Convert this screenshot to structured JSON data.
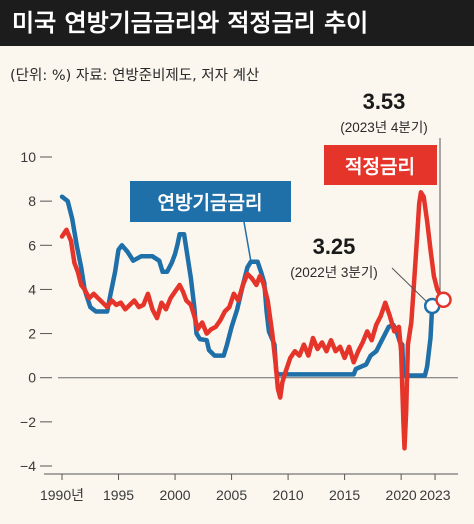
{
  "header": {
    "title": "미국 연방기금금리와 적정금리 추이",
    "subtitle": "(단위: %)  자료: 연방준비제도, 저자 계산"
  },
  "chart_data": {
    "type": "line",
    "xlim": [
      1990,
      2024.5
    ],
    "ylim": [
      -4,
      10
    ],
    "x_ticks": [
      {
        "value": 1990,
        "label": "1990년"
      },
      {
        "value": 1995,
        "label": "1995"
      },
      {
        "value": 2000,
        "label": "2000"
      },
      {
        "value": 2005,
        "label": "2005"
      },
      {
        "value": 2010,
        "label": "2010"
      },
      {
        "value": 2015,
        "label": "2015"
      },
      {
        "value": 2020,
        "label": "2020"
      },
      {
        "value": 2023,
        "label": "2023"
      }
    ],
    "y_ticks": [
      {
        "value": 10,
        "label": "10"
      },
      {
        "value": 8,
        "label": "8"
      },
      {
        "value": 6,
        "label": "6"
      },
      {
        "value": 4,
        "label": "4"
      },
      {
        "value": 2,
        "label": "2"
      },
      {
        "value": 0,
        "label": "0"
      },
      {
        "value": -2,
        "label": "−2"
      },
      {
        "value": -4,
        "label": "−4"
      }
    ],
    "zero_line": true,
    "series": [
      {
        "name": "연방기금금리",
        "color": "#1f6fa8",
        "points": [
          [
            1990.0,
            8.2
          ],
          [
            1990.5,
            8.0
          ],
          [
            1990.9,
            7.2
          ],
          [
            1991.3,
            6.0
          ],
          [
            1991.7,
            5.0
          ],
          [
            1992.0,
            4.0
          ],
          [
            1992.5,
            3.2
          ],
          [
            1993.0,
            3.0
          ],
          [
            1993.5,
            3.0
          ],
          [
            1994.0,
            3.0
          ],
          [
            1994.3,
            3.8
          ],
          [
            1994.7,
            4.8
          ],
          [
            1995.0,
            5.8
          ],
          [
            1995.3,
            6.0
          ],
          [
            1995.8,
            5.7
          ],
          [
            1996.3,
            5.3
          ],
          [
            1997.0,
            5.5
          ],
          [
            1997.5,
            5.5
          ],
          [
            1998.0,
            5.5
          ],
          [
            1998.6,
            5.3
          ],
          [
            1998.9,
            4.8
          ],
          [
            1999.3,
            4.8
          ],
          [
            1999.7,
            5.2
          ],
          [
            2000.0,
            5.6
          ],
          [
            2000.2,
            6.0
          ],
          [
            2000.4,
            6.5
          ],
          [
            2000.8,
            6.5
          ],
          [
            2001.1,
            5.5
          ],
          [
            2001.4,
            4.5
          ],
          [
            2001.7,
            3.2
          ],
          [
            2001.9,
            2.0
          ],
          [
            2002.2,
            1.75
          ],
          [
            2002.8,
            1.7
          ],
          [
            2003.0,
            1.25
          ],
          [
            2003.5,
            1.0
          ],
          [
            2004.3,
            1.0
          ],
          [
            2004.6,
            1.5
          ],
          [
            2005.0,
            2.3
          ],
          [
            2005.5,
            3.1
          ],
          [
            2006.0,
            4.2
          ],
          [
            2006.4,
            5.0
          ],
          [
            2006.7,
            5.25
          ],
          [
            2007.3,
            5.25
          ],
          [
            2007.6,
            4.8
          ],
          [
            2007.9,
            4.3
          ],
          [
            2008.1,
            3.0
          ],
          [
            2008.3,
            2.1
          ],
          [
            2008.8,
            1.5
          ],
          [
            2008.95,
            0.3
          ],
          [
            2009.1,
            0.15
          ],
          [
            2012.0,
            0.15
          ],
          [
            2015.8,
            0.15
          ],
          [
            2016.0,
            0.4
          ],
          [
            2016.9,
            0.6
          ],
          [
            2017.3,
            1.0
          ],
          [
            2017.8,
            1.2
          ],
          [
            2018.3,
            1.7
          ],
          [
            2018.9,
            2.3
          ],
          [
            2019.3,
            2.4
          ],
          [
            2019.6,
            2.1
          ],
          [
            2019.9,
            1.6
          ],
          [
            2020.1,
            1.5
          ],
          [
            2020.2,
            0.1
          ],
          [
            2022.1,
            0.1
          ],
          [
            2022.3,
            0.5
          ],
          [
            2022.6,
            1.8
          ],
          [
            2022.75,
            3.25
          ]
        ]
      },
      {
        "name": "적정금리",
        "color": "#e5342a",
        "points": [
          [
            1990.0,
            6.4
          ],
          [
            1990.4,
            6.7
          ],
          [
            1990.8,
            6.2
          ],
          [
            1991.1,
            5.2
          ],
          [
            1991.4,
            4.8
          ],
          [
            1991.7,
            4.2
          ],
          [
            1992.0,
            4.0
          ],
          [
            1992.4,
            3.6
          ],
          [
            1992.8,
            3.8
          ],
          [
            1993.2,
            3.6
          ],
          [
            1993.6,
            3.4
          ],
          [
            1994.0,
            3.2
          ],
          [
            1994.4,
            3.5
          ],
          [
            1994.8,
            3.3
          ],
          [
            1995.2,
            3.4
          ],
          [
            1995.6,
            3.1
          ],
          [
            1996.0,
            3.3
          ],
          [
            1996.4,
            3.5
          ],
          [
            1996.8,
            3.2
          ],
          [
            1997.2,
            3.3
          ],
          [
            1997.6,
            3.8
          ],
          [
            1998.0,
            3.1
          ],
          [
            1998.4,
            2.7
          ],
          [
            1998.8,
            3.4
          ],
          [
            1999.2,
            3.1
          ],
          [
            1999.6,
            3.6
          ],
          [
            2000.0,
            3.9
          ],
          [
            2000.4,
            4.2
          ],
          [
            2000.7,
            3.9
          ],
          [
            2001.0,
            3.5
          ],
          [
            2001.4,
            3.3
          ],
          [
            2001.7,
            2.8
          ],
          [
            2002.0,
            2.2
          ],
          [
            2002.4,
            2.5
          ],
          [
            2002.8,
            2.0
          ],
          [
            2003.2,
            2.2
          ],
          [
            2003.6,
            2.3
          ],
          [
            2004.0,
            2.6
          ],
          [
            2004.4,
            3.0
          ],
          [
            2004.8,
            3.2
          ],
          [
            2005.2,
            3.8
          ],
          [
            2005.6,
            3.5
          ],
          [
            2006.0,
            4.2
          ],
          [
            2006.4,
            4.7
          ],
          [
            2006.8,
            4.5
          ],
          [
            2007.2,
            4.2
          ],
          [
            2007.5,
            4.6
          ],
          [
            2007.8,
            4.3
          ],
          [
            2008.2,
            3.5
          ],
          [
            2008.6,
            2.0
          ],
          [
            2008.9,
            0.6
          ],
          [
            2009.1,
            -0.5
          ],
          [
            2009.3,
            -0.9
          ],
          [
            2009.5,
            -0.2
          ],
          [
            2009.8,
            0.3
          ],
          [
            2010.2,
            0.9
          ],
          [
            2010.6,
            1.2
          ],
          [
            2011.0,
            1.0
          ],
          [
            2011.4,
            1.5
          ],
          [
            2011.8,
            1.0
          ],
          [
            2012.2,
            1.8
          ],
          [
            2012.6,
            1.3
          ],
          [
            2013.0,
            1.6
          ],
          [
            2013.4,
            1.2
          ],
          [
            2013.8,
            1.7
          ],
          [
            2014.2,
            1.2
          ],
          [
            2014.6,
            1.4
          ],
          [
            2015.0,
            0.9
          ],
          [
            2015.4,
            1.4
          ],
          [
            2015.8,
            0.7
          ],
          [
            2016.2,
            1.2
          ],
          [
            2016.6,
            1.6
          ],
          [
            2017.0,
            2.1
          ],
          [
            2017.4,
            1.7
          ],
          [
            2017.8,
            2.4
          ],
          [
            2018.2,
            2.8
          ],
          [
            2018.6,
            3.4
          ],
          [
            2019.0,
            2.8
          ],
          [
            2019.4,
            2.1
          ],
          [
            2019.8,
            2.3
          ],
          [
            2020.0,
            1.2
          ],
          [
            2020.2,
            -2.0
          ],
          [
            2020.3,
            -3.2
          ],
          [
            2020.45,
            -1.5
          ],
          [
            2020.6,
            1.5
          ],
          [
            2020.9,
            2.5
          ],
          [
            2021.1,
            4.0
          ],
          [
            2021.4,
            6.3
          ],
          [
            2021.6,
            7.9
          ],
          [
            2021.75,
            8.4
          ],
          [
            2022.0,
            8.2
          ],
          [
            2022.3,
            7.1
          ],
          [
            2022.6,
            5.8
          ],
          [
            2022.9,
            4.6
          ],
          [
            2023.2,
            4.0
          ],
          [
            2023.5,
            3.7
          ],
          [
            2023.75,
            3.53
          ]
        ]
      }
    ],
    "annotations": [
      {
        "value": "3.25",
        "note": "(2022년 3분기)",
        "x": 2022.75,
        "y": 3.25,
        "series": "연방기금금리"
      },
      {
        "value": "3.53",
        "note": "(2023년 4분기)",
        "x": 2023.75,
        "y": 3.53,
        "series": "적정금리"
      }
    ]
  }
}
